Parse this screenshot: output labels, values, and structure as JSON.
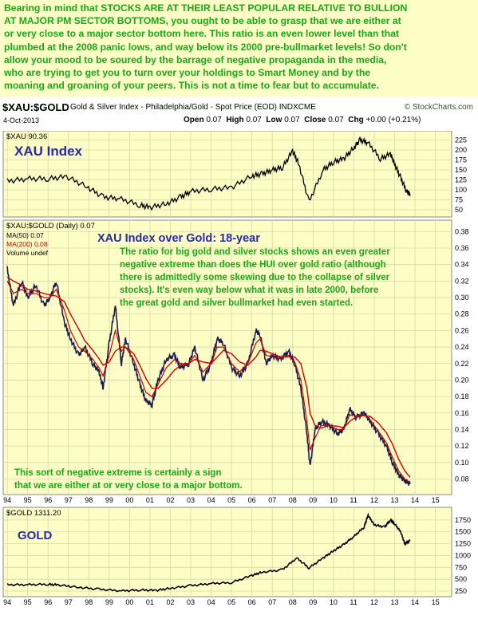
{
  "commentary": {
    "lines": [
      "Bearing in mind that STOCKS ARE AT THEIR LEAST POPULAR RELATIVE TO BULLION",
      "AT MAJOR PM SECTOR BOTTOMS, you ought to be able to grasp that we are either at",
      "or very close to a major sector bottom here. This ratio is an even lower level than that",
      "plumbed at the 2008 panic lows, and way below its 2000 pre-bullmarket levels! So don't",
      "allow your mood to be soured by the barrage of negative propaganda in the media,",
      "who are trying to get you to turn over your holdings to Smart Money and by the",
      "moaning and groaning of your peers. This is not a time to fear but to accumulate."
    ],
    "text_color": "#1aa81a",
    "bg_color": "#fdfdc6"
  },
  "header": {
    "symbol": "$XAU:$GOLD",
    "description": "Gold & Silver Index - Philadelphia/Gold - Spot Price (EOD) INDXCME",
    "brand": "© StockCharts.com",
    "date": "4-Oct-2013",
    "quote": {
      "open_label": "Open",
      "open": "0.07",
      "high_label": "High",
      "high": "0.07",
      "low_label": "Low",
      "low": "0.07",
      "close_label": "Close",
      "close": "0.07",
      "chg_label": "Chg",
      "chg": "+0.00 (+0.21%)"
    }
  },
  "chart_data": [
    {
      "type": "line",
      "panel_label": "$XAU 90.36",
      "annotation": "XAU Index",
      "x": [
        1994.0,
        1995.0,
        1996.0,
        1996.9,
        1997.9,
        1998.7,
        1999.5,
        2000.5,
        2001.0,
        2001.8,
        2002.5,
        2003.0,
        2004.0,
        2005.0,
        2006.0,
        2006.5,
        2007.0,
        2007.5,
        2008.0,
        2008.3,
        2008.8,
        2009.5,
        2010.0,
        2010.5,
        2011.0,
        2011.3,
        2011.7,
        2012.3,
        2012.8,
        2013.0,
        2013.3,
        2013.6,
        2013.76
      ],
      "values": [
        122,
        128,
        128,
        133,
        108,
        82,
        78,
        62,
        56,
        65,
        82,
        96,
        102,
        106,
        135,
        140,
        150,
        156,
        198,
        165,
        70,
        150,
        170,
        178,
        205,
        225,
        218,
        178,
        190,
        165,
        130,
        95,
        90
      ],
      "y_ticks": [
        50,
        75,
        100,
        125,
        150,
        175,
        200,
        225
      ],
      "ylim": [
        40,
        240
      ],
      "xlim": [
        1993.8,
        2015.8
      ],
      "line_color": "#000000",
      "annotation_color": "#2a2aa6"
    },
    {
      "type": "line",
      "panel_label": "$XAU:$GOLD (Daily) 0.07",
      "legend": [
        "MA(50) 0.07",
        "MA(200) 0.08",
        "Volume undef"
      ],
      "title": "XAU Index over Gold: 18-year",
      "annotation": [
        "The ratio for big gold and silver stocks shows an even greater",
        "negative extreme than does the HUI over gold ratio (although",
        "there is admittedly some skewing due to the collapse of silver",
        "stocks). It's even way below what it was in late 2000, before",
        "the great gold and silver bullmarket had even started."
      ],
      "annotation_bottom": [
        "This sort of negative  extreme is certainly a sign",
        "that we are either at or very close to a major bottom."
      ],
      "x": [
        1994.0,
        1994.3,
        1994.7,
        1995.0,
        1995.4,
        1995.8,
        1996.1,
        1996.4,
        1996.8,
        1997.1,
        1997.5,
        1997.8,
        1998.2,
        1998.5,
        1998.7,
        1999.0,
        1999.3,
        1999.6,
        1999.8,
        2000.2,
        2000.5,
        2000.8,
        2001.1,
        2001.4,
        2001.8,
        2002.2,
        2002.5,
        2002.9,
        2003.2,
        2003.6,
        2004.0,
        2004.3,
        2004.6,
        2005.0,
        2005.4,
        2005.8,
        2006.2,
        2006.4,
        2006.7,
        2007.0,
        2007.4,
        2007.8,
        2008.1,
        2008.4,
        2008.7,
        2008.85,
        2009.1,
        2009.4,
        2009.8,
        2010.2,
        2010.5,
        2010.8,
        2011.1,
        2011.5,
        2011.8,
        2012.2,
        2012.6,
        2012.9,
        2013.2,
        2013.5,
        2013.76
      ],
      "values": [
        0.335,
        0.29,
        0.32,
        0.3,
        0.315,
        0.29,
        0.3,
        0.32,
        0.27,
        0.25,
        0.23,
        0.24,
        0.22,
        0.21,
        0.19,
        0.245,
        0.29,
        0.22,
        0.25,
        0.22,
        0.195,
        0.175,
        0.17,
        0.2,
        0.225,
        0.23,
        0.215,
        0.22,
        0.24,
        0.2,
        0.22,
        0.25,
        0.245,
        0.215,
        0.205,
        0.22,
        0.26,
        0.255,
        0.22,
        0.23,
        0.225,
        0.235,
        0.22,
        0.19,
        0.135,
        0.095,
        0.14,
        0.15,
        0.145,
        0.135,
        0.14,
        0.165,
        0.155,
        0.16,
        0.15,
        0.135,
        0.12,
        0.1,
        0.085,
        0.078,
        0.074
      ],
      "ma50": [
        0.32,
        0.305,
        0.31,
        0.305,
        0.305,
        0.3,
        0.3,
        0.31,
        0.285,
        0.26,
        0.24,
        0.235,
        0.225,
        0.215,
        0.205,
        0.23,
        0.26,
        0.235,
        0.24,
        0.225,
        0.205,
        0.185,
        0.18,
        0.195,
        0.215,
        0.225,
        0.22,
        0.22,
        0.23,
        0.21,
        0.22,
        0.24,
        0.24,
        0.22,
        0.21,
        0.22,
        0.245,
        0.25,
        0.23,
        0.228,
        0.226,
        0.23,
        0.222,
        0.2,
        0.15,
        0.115,
        0.13,
        0.145,
        0.145,
        0.14,
        0.14,
        0.158,
        0.156,
        0.158,
        0.152,
        0.138,
        0.124,
        0.106,
        0.09,
        0.08,
        0.076
      ],
      "ma200": [
        0.325,
        0.32,
        0.315,
        0.31,
        0.308,
        0.305,
        0.303,
        0.302,
        0.295,
        0.28,
        0.262,
        0.248,
        0.236,
        0.226,
        0.218,
        0.222,
        0.235,
        0.24,
        0.24,
        0.232,
        0.218,
        0.202,
        0.19,
        0.19,
        0.2,
        0.212,
        0.218,
        0.22,
        0.225,
        0.222,
        0.22,
        0.228,
        0.236,
        0.232,
        0.222,
        0.218,
        0.228,
        0.236,
        0.235,
        0.232,
        0.228,
        0.228,
        0.228,
        0.22,
        0.19,
        0.16,
        0.145,
        0.142,
        0.145,
        0.144,
        0.142,
        0.15,
        0.155,
        0.157,
        0.156,
        0.148,
        0.136,
        0.122,
        0.104,
        0.09,
        0.082
      ],
      "y_ticks": [
        0.08,
        0.1,
        0.12,
        0.14,
        0.16,
        0.18,
        0.2,
        0.22,
        0.24,
        0.26,
        0.28,
        0.3,
        0.32,
        0.34,
        0.36,
        0.38
      ],
      "ylim": [
        0.065,
        0.39
      ],
      "xlim": [
        1993.8,
        2015.8
      ],
      "x_ticks": [
        "94",
        "95",
        "96",
        "97",
        "98",
        "99",
        "00",
        "01",
        "02",
        "03",
        "04",
        "05",
        "06",
        "07",
        "08",
        "09",
        "10",
        "11",
        "12",
        "13",
        "14",
        "15"
      ],
      "line_color": "#1a1a4d",
      "ma_color": "#cc0000",
      "title_color": "#2a2aa6",
      "annotation_color": "#1aa81a"
    },
    {
      "type": "line",
      "panel_label": "$GOLD 1311.20",
      "annotation": "GOLD",
      "x": [
        1994.0,
        1995.0,
        1996.0,
        1996.5,
        1997.5,
        1998.5,
        1999.6,
        2000.5,
        2001.3,
        2002.0,
        2003.0,
        2004.0,
        2005.0,
        2006.0,
        2006.5,
        2007.5,
        2008.2,
        2008.8,
        2009.5,
        2010.0,
        2010.5,
        2011.0,
        2011.5,
        2011.7,
        2012.0,
        2012.5,
        2012.8,
        2013.0,
        2013.3,
        2013.5,
        2013.76
      ],
      "values": [
        385,
        385,
        395,
        380,
        330,
        290,
        255,
        275,
        265,
        310,
        365,
        410,
        430,
        580,
        650,
        700,
        950,
        740,
        950,
        1100,
        1230,
        1400,
        1600,
        1850,
        1650,
        1600,
        1750,
        1670,
        1500,
        1250,
        1311
      ],
      "y_ticks": [
        250,
        500,
        750,
        1000,
        1250,
        1500,
        1750
      ],
      "ylim": [
        200,
        1950
      ],
      "xlim": [
        1993.8,
        2015.8
      ],
      "x_ticks": [
        "94",
        "95",
        "96",
        "97",
        "98",
        "99",
        "00",
        "01",
        "02",
        "03",
        "04",
        "05",
        "06",
        "07",
        "08",
        "09",
        "10",
        "11",
        "12",
        "13",
        "14",
        "15"
      ],
      "line_color": "#000000",
      "annotation_color": "#2a2aa6"
    }
  ],
  "colors": {
    "panel_bg": "#fdfdc6",
    "grid": "#d8d8a8",
    "border": "#888888"
  }
}
